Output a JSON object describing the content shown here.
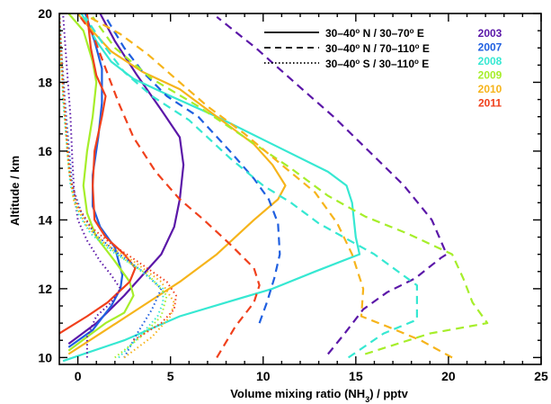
{
  "chart_data": {
    "type": "line",
    "xlabel": "Volume mixing ratio (NH",
    "xlabel_sub": "3",
    "xlabel_tail": ") / pptv",
    "ylabel": "Altitude / km",
    "xlim": [
      -1,
      25
    ],
    "ylim": [
      9.8,
      20
    ],
    "xticks": [
      "0",
      "5",
      "10",
      "15",
      "20",
      "25"
    ],
    "xtick_values": [
      0,
      5,
      10,
      15,
      20,
      25
    ],
    "yticks": [
      "10",
      "12",
      "14",
      "16",
      "18",
      "20"
    ],
    "ytick_values": [
      10,
      12,
      14,
      16,
      18,
      20
    ],
    "line_styles": [
      {
        "style": "solid",
        "label_main": "30–40",
        "label_deg": "o",
        "label_rest": " N / 30–70",
        "label_deg2": "o",
        "label_end": " E"
      },
      {
        "style": "dashed",
        "label_main": "30–40",
        "label_deg": "o",
        "label_rest": " N / 70–110",
        "label_deg2": "o",
        "label_end": " E"
      },
      {
        "style": "dotted",
        "label_main": "30–40",
        "label_deg": "o",
        "label_rest": " S / 30–110",
        "label_deg2": "o",
        "label_end": " E"
      }
    ],
    "years": [
      {
        "name": "2003",
        "color": "#5b17a8"
      },
      {
        "name": "2007",
        "color": "#1f5fe0"
      },
      {
        "name": "2008",
        "color": "#36e8d2"
      },
      {
        "name": "2009",
        "color": "#a6ee2a"
      },
      {
        "name": "2010",
        "color": "#f6b41b"
      },
      {
        "name": "2011",
        "color": "#f0401c"
      }
    ],
    "series": [
      {
        "year": "2003",
        "style": "solid",
        "points": [
          [
            -0.5,
            10.4
          ],
          [
            1,
            11
          ],
          [
            2.5,
            11.8
          ],
          [
            4.5,
            13
          ],
          [
            5.2,
            13.8
          ],
          [
            5.5,
            14.6
          ],
          [
            5.7,
            15.6
          ],
          [
            5.5,
            16.4
          ],
          [
            4.5,
            17.2
          ],
          [
            3.2,
            18.2
          ],
          [
            2,
            19.2
          ],
          [
            1.2,
            20
          ]
        ]
      },
      {
        "year": "2007",
        "style": "solid",
        "points": [
          [
            -0.5,
            10.3
          ],
          [
            0.8,
            10.8
          ],
          [
            1.8,
            11.5
          ],
          [
            2.3,
            12
          ],
          [
            2.4,
            12.4
          ],
          [
            2,
            13.2
          ],
          [
            1.2,
            13.8
          ],
          [
            0.8,
            14.4
          ],
          [
            0.8,
            15.3
          ],
          [
            1.1,
            16.4
          ],
          [
            1.3,
            17.4
          ],
          [
            1.3,
            18.4
          ],
          [
            0.9,
            19.2
          ],
          [
            0.4,
            20
          ]
        ]
      },
      {
        "year": "2008",
        "style": "solid",
        "points": [
          [
            -0.8,
            9.9
          ],
          [
            2.5,
            10.5
          ],
          [
            5.5,
            11.2
          ],
          [
            8,
            11.6
          ],
          [
            10.5,
            12
          ],
          [
            12.8,
            12.5
          ],
          [
            15.2,
            13
          ],
          [
            15,
            13.5
          ],
          [
            14.8,
            14.5
          ],
          [
            14.5,
            15
          ],
          [
            13.5,
            15.4
          ],
          [
            10.5,
            16.2
          ],
          [
            7.5,
            17
          ],
          [
            5,
            17.6
          ],
          [
            3,
            18.1
          ],
          [
            1.8,
            18.6
          ],
          [
            1,
            19.2
          ],
          [
            0.2,
            20
          ]
        ]
      },
      {
        "year": "2009",
        "style": "solid",
        "points": [
          [
            -0.5,
            10.2
          ],
          [
            0.5,
            10.6
          ],
          [
            1.5,
            11
          ],
          [
            2.5,
            11.3
          ],
          [
            3,
            11.8
          ],
          [
            2.8,
            12.2
          ],
          [
            2,
            12.8
          ],
          [
            1,
            13.5
          ],
          [
            0.5,
            14.2
          ],
          [
            0.3,
            15
          ],
          [
            0.5,
            16
          ],
          [
            0.8,
            17
          ],
          [
            1,
            18
          ],
          [
            0.8,
            18.6
          ],
          [
            0.3,
            19.5
          ],
          [
            -0.5,
            20
          ]
        ]
      },
      {
        "year": "2010",
        "style": "solid",
        "points": [
          [
            -0.5,
            10.1
          ],
          [
            1.5,
            10.8
          ],
          [
            3.5,
            11.5
          ],
          [
            5.5,
            12.2
          ],
          [
            7.5,
            13
          ],
          [
            9.5,
            14
          ],
          [
            10.8,
            14.6
          ],
          [
            11.2,
            15
          ],
          [
            10.5,
            15.6
          ],
          [
            9.5,
            16.2
          ],
          [
            7.5,
            17
          ],
          [
            5.5,
            17.8
          ],
          [
            3.5,
            18.3
          ],
          [
            1.8,
            18.9
          ],
          [
            0.6,
            19.6
          ],
          [
            0,
            20
          ]
        ]
      },
      {
        "year": "2011",
        "style": "solid",
        "points": [
          [
            -1,
            10.7
          ],
          [
            0.5,
            11.2
          ],
          [
            1.6,
            11.6
          ],
          [
            2.8,
            12.2
          ],
          [
            3.1,
            12.6
          ],
          [
            2.5,
            13
          ],
          [
            1.5,
            13.5
          ],
          [
            0.9,
            14
          ],
          [
            0.8,
            15
          ],
          [
            0.9,
            16
          ],
          [
            1.3,
            17
          ],
          [
            1.5,
            17.6
          ],
          [
            1,
            18.2
          ],
          [
            0.7,
            19
          ],
          [
            0.5,
            20
          ]
        ]
      },
      {
        "year": "2003",
        "style": "dashed",
        "points": [
          [
            13.5,
            10.1
          ],
          [
            14.4,
            10.7
          ],
          [
            15.4,
            11.4
          ],
          [
            16.7,
            11.9
          ],
          [
            18.2,
            12.3
          ],
          [
            19.6,
            12.9
          ],
          [
            19.9,
            13
          ],
          [
            19.1,
            14
          ],
          [
            17.6,
            15
          ],
          [
            15.7,
            16
          ],
          [
            13.8,
            17
          ],
          [
            11.9,
            17.9
          ],
          [
            9.6,
            19
          ],
          [
            7.5,
            19.9
          ]
        ]
      },
      {
        "year": "2007",
        "style": "dashed",
        "points": [
          [
            9.8,
            11
          ],
          [
            10.2,
            11.6
          ],
          [
            10.6,
            12.3
          ],
          [
            10.9,
            13
          ],
          [
            10.8,
            13.9
          ],
          [
            10.3,
            14.6
          ],
          [
            9.5,
            15.2
          ],
          [
            8.2,
            16
          ],
          [
            6.5,
            17
          ],
          [
            4.8,
            17.6
          ],
          [
            3.5,
            18.3
          ],
          [
            2.5,
            19
          ],
          [
            1.5,
            19.9
          ]
        ]
      },
      {
        "year": "2008",
        "style": "dashed",
        "points": [
          [
            14.6,
            10
          ],
          [
            16.5,
            10.7
          ],
          [
            18.3,
            11.1
          ],
          [
            18.3,
            12.1
          ],
          [
            16,
            13
          ],
          [
            13,
            13.9
          ],
          [
            11.5,
            14.5
          ],
          [
            10,
            15
          ],
          [
            8.2,
            15.8
          ],
          [
            6,
            16.9
          ],
          [
            4,
            17.6
          ],
          [
            2.5,
            18.3
          ],
          [
            1.5,
            19
          ],
          [
            0.4,
            19.9
          ]
        ]
      },
      {
        "year": "2009",
        "style": "dashed",
        "points": [
          [
            15.5,
            10.1
          ],
          [
            19,
            10.7
          ],
          [
            22.1,
            11
          ],
          [
            21.3,
            11.6
          ],
          [
            20.8,
            12.3
          ],
          [
            20.2,
            13
          ],
          [
            17.8,
            13.6
          ],
          [
            15.5,
            14.1
          ],
          [
            13.5,
            14.7
          ],
          [
            11.5,
            15.5
          ],
          [
            9,
            16.4
          ],
          [
            6.5,
            17.3
          ],
          [
            4,
            18.1
          ],
          [
            2,
            19
          ],
          [
            0.8,
            19.9
          ]
        ]
      },
      {
        "year": "2010",
        "style": "dashed",
        "points": [
          [
            20.2,
            10
          ],
          [
            18.5,
            10.5
          ],
          [
            16.7,
            10.9
          ],
          [
            15.3,
            11.2
          ],
          [
            15.4,
            12
          ],
          [
            14.8,
            13
          ],
          [
            14,
            13.9
          ],
          [
            12.8,
            14.8
          ],
          [
            11,
            15.6
          ],
          [
            9,
            16.5
          ],
          [
            7,
            17.3
          ],
          [
            5.5,
            18
          ],
          [
            3.8,
            18.8
          ],
          [
            2.3,
            19.4
          ],
          [
            0.6,
            19.9
          ]
        ]
      },
      {
        "year": "2011",
        "style": "dashed",
        "points": [
          [
            7.5,
            10
          ],
          [
            8.5,
            10.9
          ],
          [
            9.5,
            11.6
          ],
          [
            9.8,
            12.1
          ],
          [
            9.5,
            12.6
          ],
          [
            8.2,
            13.3
          ],
          [
            6.8,
            14
          ],
          [
            5.5,
            14.6
          ],
          [
            4.2,
            15.4
          ],
          [
            3,
            16.4
          ],
          [
            2.2,
            17.4
          ],
          [
            1.5,
            18.4
          ],
          [
            0.8,
            19.4
          ],
          [
            0,
            20
          ]
        ]
      },
      {
        "year": "2003",
        "style": "dotted",
        "points": [
          [
            0.5,
            10
          ],
          [
            0.5,
            10.6
          ],
          [
            1,
            11.2
          ],
          [
            1.8,
            11.6
          ],
          [
            2.3,
            12
          ],
          [
            1.8,
            12.4
          ],
          [
            1.2,
            12.8
          ],
          [
            0.5,
            13.4
          ],
          [
            0,
            14
          ],
          [
            -0.2,
            14.8
          ],
          [
            -0.3,
            15.8
          ],
          [
            -0.4,
            17
          ],
          [
            -0.6,
            18.5
          ],
          [
            -0.8,
            20
          ]
        ]
      },
      {
        "year": "2007",
        "style": "dotted",
        "points": [
          [
            2.5,
            10
          ],
          [
            3.2,
            10.7
          ],
          [
            4,
            11.4
          ],
          [
            4.5,
            12
          ],
          [
            3.5,
            12.5
          ],
          [
            2,
            13.1
          ],
          [
            0.9,
            13.6
          ],
          [
            0.2,
            14.2
          ],
          [
            -0.3,
            15
          ],
          [
            -0.5,
            16.2
          ],
          [
            -0.7,
            17.5
          ],
          [
            -0.9,
            19
          ],
          [
            -1,
            20
          ]
        ]
      },
      {
        "year": "2008",
        "style": "dotted",
        "points": [
          [
            2.2,
            10
          ],
          [
            3.3,
            10.6
          ],
          [
            4.3,
            11.2
          ],
          [
            4.6,
            11.6
          ],
          [
            4.6,
            12
          ],
          [
            3.2,
            12.6
          ],
          [
            1.8,
            13.1
          ],
          [
            0.7,
            13.6
          ],
          [
            0,
            14.2
          ],
          [
            -0.4,
            15
          ],
          [
            -0.6,
            16.2
          ],
          [
            -0.8,
            17.5
          ],
          [
            -0.9,
            19
          ],
          [
            -1,
            20
          ]
        ]
      },
      {
        "year": "2009",
        "style": "dotted",
        "points": [
          [
            2,
            10
          ],
          [
            3.4,
            10.6
          ],
          [
            4.5,
            11.2
          ],
          [
            4.8,
            11.8
          ],
          [
            3.8,
            12.4
          ],
          [
            2.4,
            12.9
          ],
          [
            1.2,
            13.4
          ],
          [
            0.4,
            13.9
          ],
          [
            -0.2,
            14.6
          ],
          [
            -0.5,
            15.6
          ],
          [
            -0.7,
            17
          ],
          [
            -0.9,
            18.5
          ],
          [
            -1,
            20
          ]
        ]
      },
      {
        "year": "2010",
        "style": "dotted",
        "points": [
          [
            2.5,
            10
          ],
          [
            4,
            10.6
          ],
          [
            5,
            11.2
          ],
          [
            5.2,
            11.6
          ],
          [
            4.5,
            12.2
          ],
          [
            3,
            12.8
          ],
          [
            1.5,
            13.3
          ],
          [
            0.5,
            13.8
          ],
          [
            -0.2,
            14.5
          ],
          [
            -0.5,
            15.5
          ],
          [
            -0.7,
            17
          ],
          [
            -0.9,
            18.5
          ],
          [
            -1,
            20
          ]
        ]
      },
      {
        "year": "2011",
        "style": "dotted",
        "points": [
          [
            3,
            10.5
          ],
          [
            4.5,
            11
          ],
          [
            5.2,
            11.4
          ],
          [
            5.3,
            11.8
          ],
          [
            4.8,
            12.2
          ],
          [
            3.2,
            12.8
          ],
          [
            1.8,
            13.3
          ],
          [
            0.7,
            13.8
          ],
          [
            0,
            14.4
          ],
          [
            -0.4,
            15.2
          ],
          [
            -0.6,
            16.5
          ],
          [
            -0.8,
            18
          ],
          [
            -1,
            20
          ]
        ]
      }
    ]
  }
}
